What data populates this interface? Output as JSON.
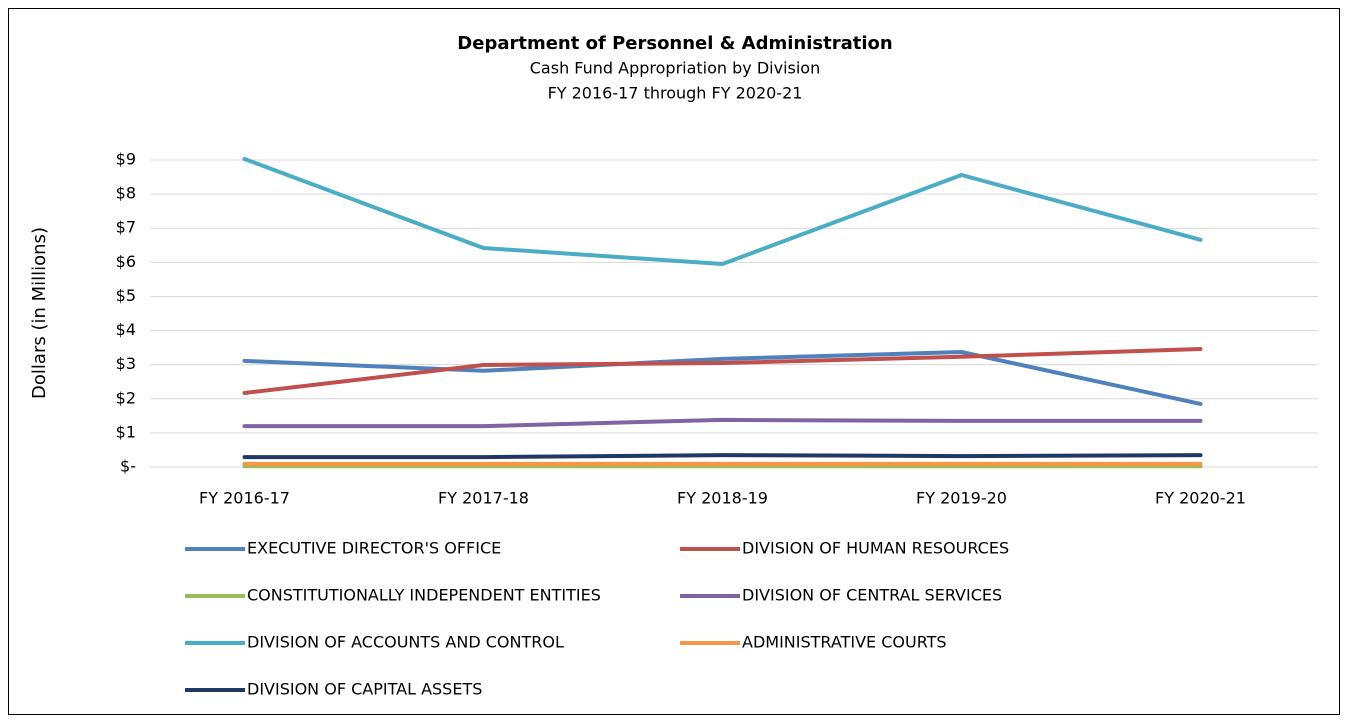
{
  "chart_data": {
    "type": "line",
    "title": "Department of Personnel & Administration",
    "subtitle": [
      "Cash Fund Appropriation by Division",
      "FY 2016-17 through FY 2020-21"
    ],
    "y_label": "Dollars (in Millions)",
    "categories": [
      "FY 2016-17",
      "FY 2017-18",
      "FY 2018-19",
      "FY 2019-20",
      "FY 2020-21"
    ],
    "ylim": [
      0,
      9
    ],
    "yticks": [
      {
        "value": 0,
        "label": "$-"
      },
      {
        "value": 1,
        "label": "$1"
      },
      {
        "value": 2,
        "label": "$2"
      },
      {
        "value": 3,
        "label": "$3"
      },
      {
        "value": 4,
        "label": "$4"
      },
      {
        "value": 5,
        "label": "$5"
      },
      {
        "value": 6,
        "label": "$6"
      },
      {
        "value": 7,
        "label": "$7"
      },
      {
        "value": 8,
        "label": "$8"
      },
      {
        "value": 9,
        "label": "$9"
      }
    ],
    "grid": true,
    "legend": "bottom",
    "series": [
      {
        "name": "EXECUTIVE DIRECTOR'S OFFICE",
        "color": "#4f81bd",
        "values": [
          3.11,
          2.82,
          3.17,
          3.37,
          1.85
        ]
      },
      {
        "name": "DIVISION OF HUMAN RESOURCES",
        "color": "#c0504d",
        "values": [
          2.17,
          2.99,
          3.05,
          3.23,
          3.46
        ]
      },
      {
        "name": "CONSTITUTIONALLY INDEPENDENT ENTITIES",
        "color": "#9bbb59",
        "values": [
          0.02,
          0.02,
          0.02,
          0.02,
          0.02
        ]
      },
      {
        "name": "DIVISION OF CENTRAL SERVICES",
        "color": "#8064a2",
        "values": [
          1.2,
          1.2,
          1.38,
          1.35,
          1.35
        ]
      },
      {
        "name": "DIVISION OF ACCOUNTS AND CONTROL",
        "color": "#4bacc6",
        "values": [
          9.03,
          6.42,
          5.95,
          8.56,
          6.66
        ]
      },
      {
        "name": "ADMINISTRATIVE COURTS",
        "color": "#f79646",
        "values": [
          0.09,
          0.09,
          0.09,
          0.09,
          0.09
        ]
      },
      {
        "name": "DIVISION OF CAPITAL ASSETS",
        "color": "#1f3864",
        "values": [
          0.29,
          0.29,
          0.35,
          0.32,
          0.35
        ]
      }
    ]
  }
}
